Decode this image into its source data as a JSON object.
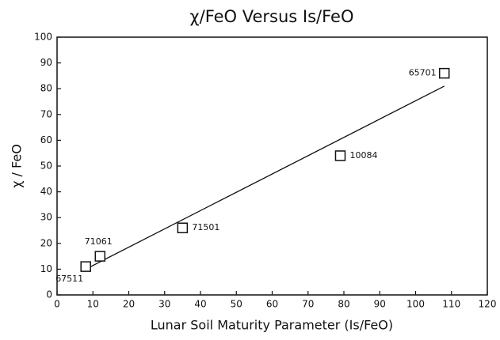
{
  "chart_data": {
    "type": "scatter",
    "title": "χ/FeO Versus Is/FeO",
    "x_label": "Lunar Soil Maturity Parameter (Is/FeO)",
    "y_label": "χ / FeO",
    "x": [
      8,
      12,
      35,
      79,
      108
    ],
    "y": [
      11,
      15,
      26,
      54,
      86
    ],
    "point_labels": [
      "67511",
      "71061",
      "71501",
      "10084",
      "65701"
    ],
    "fit": {
      "x": [
        8,
        108
      ],
      "y": [
        10,
        81
      ]
    },
    "color": "#111111",
    "xlim": [
      0,
      120
    ],
    "xticks": [
      0,
      10,
      20,
      30,
      40,
      50,
      60,
      70,
      80,
      90,
      100,
      110,
      120
    ],
    "ylim": [
      0,
      100
    ],
    "yticks": [
      0,
      10,
      20,
      30,
      40,
      50,
      60,
      70,
      80,
      90,
      100
    ]
  }
}
